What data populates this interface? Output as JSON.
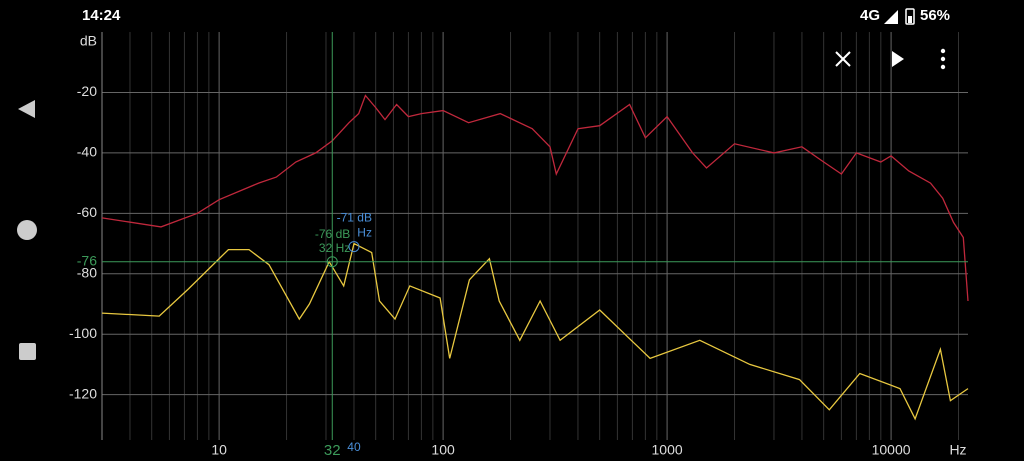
{
  "status_bar": {
    "time": "14:24",
    "network": "4G",
    "battery": "56%"
  },
  "chart_data": {
    "type": "line",
    "x_unit": "Hz",
    "y_unit": "dB",
    "log_x": true,
    "grid": true,
    "xlim": [
      3,
      22050
    ],
    "ylim": [
      -135,
      0
    ],
    "xticks": [
      10,
      100,
      1000,
      10000
    ],
    "yticks": [
      -20,
      -40,
      -60,
      -80,
      -100,
      -120
    ],
    "series": [
      {
        "color": "#c0283c",
        "x": [
          3,
          5.5,
          8,
          10,
          15,
          18,
          22,
          27,
          32,
          38,
          42,
          45,
          50,
          55,
          62,
          70,
          80,
          100,
          130,
          180,
          250,
          300,
          320,
          400,
          500,
          680,
          800,
          1000,
          1300,
          1500,
          2000,
          3000,
          4000,
          5000,
          6000,
          7000,
          9000,
          10000,
          12000,
          15000,
          17000,
          19000,
          21000,
          22050
        ],
        "values": [
          -61.5,
          -64.5,
          -60,
          -55.5,
          -50,
          -48,
          -43,
          -40,
          -36,
          -30,
          -27,
          -21,
          -25,
          -29,
          -24,
          -28,
          -27,
          -26,
          -30,
          -27,
          -32,
          -38,
          -47,
          -32,
          -31,
          -24,
          -35,
          -28,
          -40,
          -45,
          -37,
          -40,
          -38,
          -43,
          -47,
          -40,
          -43,
          -41,
          -46,
          -50,
          -55,
          -63,
          -68,
          -89
        ]
      },
      {
        "color": "#e8c840",
        "x": [
          3,
          5.4,
          7.3,
          11,
          13.6,
          16.7,
          22.8,
          25.3,
          31,
          36,
          40,
          48,
          52,
          61,
          71,
          97,
          107,
          131,
          161,
          178,
          220,
          271,
          333,
          500,
          840,
          1400,
          2340,
          3900,
          5300,
          7250,
          10960,
          12800,
          16600,
          18400,
          22050
        ],
        "values": [
          -93,
          -94,
          -85,
          -72,
          -72,
          -77,
          -95,
          -90,
          -76,
          -84,
          -70,
          -73,
          -89,
          -95,
          -84,
          -88,
          -108,
          -82,
          -75,
          -89,
          -102,
          -89,
          -102,
          -92,
          -108,
          -102,
          -110,
          -115,
          -125,
          -113,
          -118,
          -128,
          -105,
          -122,
          -118
        ]
      }
    ],
    "cursor": {
      "color": "#3c9a5a",
      "frequency": 32,
      "level": -76,
      "freq_label": "32",
      "level_label": "-76",
      "annotation": [
        "-76 dB",
        "32 Hz"
      ]
    },
    "marker": {
      "color": "#4a8fd8",
      "frequency": 40,
      "level": -71,
      "freq_label": "40",
      "annotation": [
        "-71 dB",
        "Hz"
      ]
    }
  }
}
